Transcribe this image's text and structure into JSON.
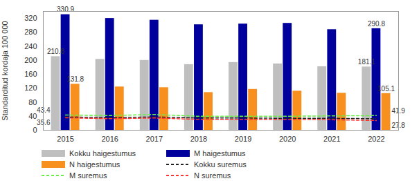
{
  "chart_data": {
    "type": "bar",
    "categories": [
      "2015",
      "2016",
      "2017",
      "2018",
      "2019",
      "2020",
      "2021",
      "2022"
    ],
    "y_label": "Standarditud kordaja 100 000",
    "ylim": [
      0,
      340
    ],
    "yticks": [
      0,
      40,
      80,
      120,
      160,
      200,
      240,
      280,
      320
    ],
    "grid": false,
    "legend": "bottom",
    "series": [
      {
        "name": "Kokku haigestumus",
        "type": "bar",
        "color": "#bfbfbf",
        "values": [
          210.8,
          203,
          200,
          188,
          194,
          190,
          182,
          181.1
        ],
        "value_labels": [
          "210.8",
          null,
          null,
          null,
          null,
          null,
          null,
          "181.1"
        ]
      },
      {
        "name": "M haigestumus",
        "type": "bar",
        "color": "#00009c",
        "values": [
          330.9,
          320,
          315,
          302,
          304,
          306,
          288,
          290.8
        ],
        "value_labels": [
          "330.9",
          null,
          null,
          null,
          null,
          null,
          null,
          "290.8"
        ]
      },
      {
        "name": "N haigestumus",
        "type": "bar",
        "color": "#f7901e",
        "values": [
          131.8,
          124,
          122,
          108,
          117,
          112,
          106,
          105.1
        ],
        "value_labels": [
          "131.8",
          null,
          null,
          null,
          null,
          null,
          null,
          "105.1"
        ]
      },
      {
        "name": "Kokku suremus",
        "type": "line",
        "line_style": "dashed",
        "color": "#222222",
        "values": [
          38,
          36,
          38,
          35,
          35,
          34,
          34,
          33
        ]
      },
      {
        "name": "M suremus",
        "type": "line",
        "line_style": "dashed",
        "color": "#66ee44",
        "values": [
          43.4,
          42,
          45,
          40,
          40,
          40,
          41,
          41.9
        ],
        "value_labels": [
          "43.4",
          null,
          null,
          null,
          null,
          null,
          null,
          "41.9"
        ]
      },
      {
        "name": "N suremus",
        "type": "line",
        "line_style": "dashed",
        "color": "#ff3333",
        "values": [
          35.6,
          33,
          35,
          31,
          31,
          30,
          30,
          27.8
        ],
        "value_labels": [
          "35.6",
          null,
          null,
          null,
          null,
          null,
          null,
          "27.8"
        ]
      }
    ]
  }
}
